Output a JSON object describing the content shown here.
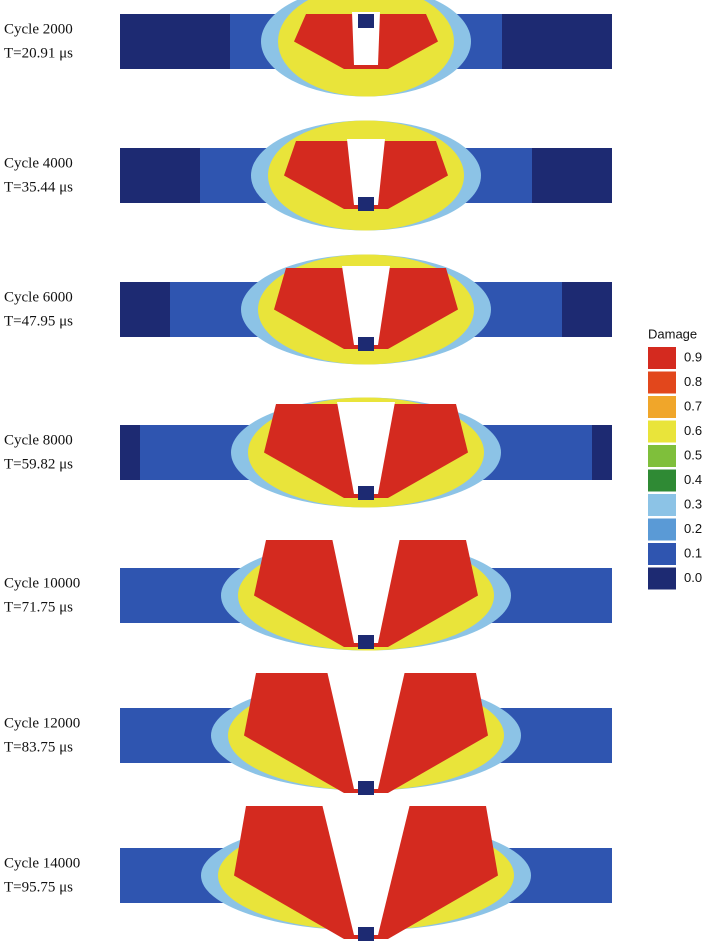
{
  "panels": [
    {
      "cycle": "Cycle 2000",
      "time": "T=20.91 μs"
    },
    {
      "cycle": "Cycle 4000",
      "time": "T=35.44 μs"
    },
    {
      "cycle": "Cycle 6000",
      "time": "T=47.95 μs"
    },
    {
      "cycle": "Cycle 8000",
      "time": "T=59.82 μs"
    },
    {
      "cycle": "Cycle 10000",
      "time": "T=71.75 μs"
    },
    {
      "cycle": "Cycle 12000",
      "time": "T=83.75 μs"
    },
    {
      "cycle": "Cycle 14000",
      "time": "T=95.75 μs"
    }
  ],
  "legend": {
    "title": "Damage",
    "items": [
      {
        "label": "0.9",
        "color": "#d42a1f"
      },
      {
        "label": "0.8",
        "color": "#e2471c"
      },
      {
        "label": "0.7",
        "color": "#f0a62a"
      },
      {
        "label": "0.6",
        "color": "#e9e43a"
      },
      {
        "label": "0.5",
        "color": "#7fbf3b"
      },
      {
        "label": "0.4",
        "color": "#2f8a34"
      },
      {
        "label": "0.3",
        "color": "#8cc3e6"
      },
      {
        "label": "0.2",
        "color": "#5a9ad6"
      },
      {
        "label": "0.1",
        "color": "#2f55b0"
      },
      {
        "label": "0.0",
        "color": "#1d2a72"
      }
    ]
  }
}
